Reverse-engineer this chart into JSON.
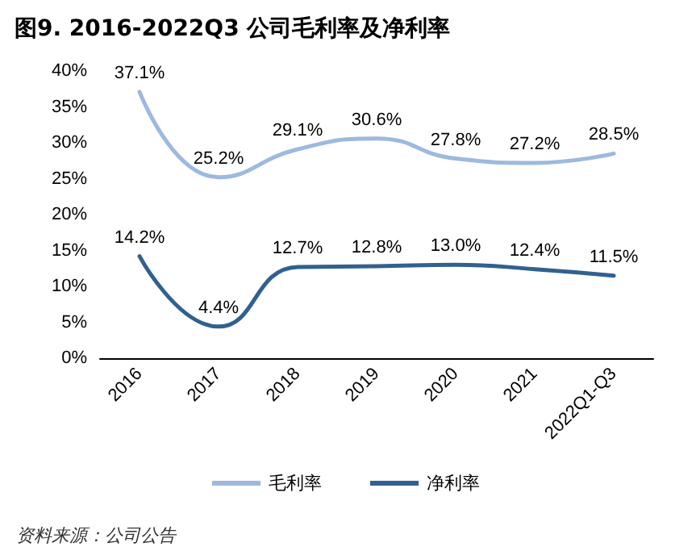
{
  "chart_data": {
    "type": "line",
    "title": "图9. 2016-2022Q3 公司毛利率及净利率",
    "categories": [
      "2016",
      "2017",
      "2018",
      "2019",
      "2020",
      "2021",
      "2022Q1-Q3"
    ],
    "series": [
      {
        "name": "毛利率",
        "color": "#9db9df",
        "values": [
          37.1,
          25.2,
          29.1,
          30.6,
          27.8,
          27.2,
          28.5
        ],
        "value_labels": [
          "37.1%",
          "25.2%",
          "29.1%",
          "30.6%",
          "27.8%",
          "27.2%",
          "28.5%"
        ]
      },
      {
        "name": "净利率",
        "color": "#30618f",
        "values": [
          14.2,
          4.4,
          12.7,
          12.8,
          13.0,
          12.4,
          11.5
        ],
        "value_labels": [
          "14.2%",
          "4.4%",
          "12.7%",
          "12.8%",
          "13.0%",
          "12.4%",
          "11.5%"
        ]
      }
    ],
    "ylim": [
      0,
      40
    ],
    "yticks": [
      {
        "value": 0,
        "label": "0%"
      },
      {
        "value": 5,
        "label": "5%"
      },
      {
        "value": 10,
        "label": "10%"
      },
      {
        "value": 15,
        "label": "15%"
      },
      {
        "value": 20,
        "label": "20%"
      },
      {
        "value": 25,
        "label": "25%"
      },
      {
        "value": 30,
        "label": "30%"
      },
      {
        "value": 35,
        "label": "35%"
      },
      {
        "value": 40,
        "label": "40%"
      }
    ],
    "legend": "bottom",
    "grid": false,
    "marker": "none",
    "line_style": "solid",
    "annotations": [
      "资料来源：公司公告"
    ]
  }
}
